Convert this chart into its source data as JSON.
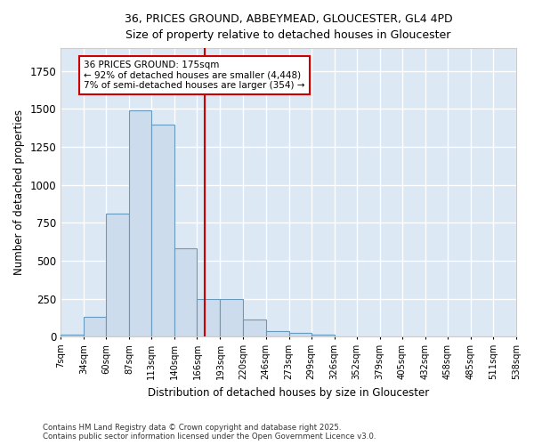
{
  "title_line1": "36, PRICES GROUND, ABBEYMEAD, GLOUCESTER, GL4 4PD",
  "title_line2": "Size of property relative to detached houses in Gloucester",
  "xlabel": "Distribution of detached houses by size in Gloucester",
  "ylabel": "Number of detached properties",
  "bar_edges": [
    7,
    34,
    60,
    87,
    113,
    140,
    166,
    193,
    220,
    246,
    273,
    299,
    326,
    352,
    379,
    405,
    432,
    458,
    485,
    511,
    538
  ],
  "bar_heights": [
    10,
    130,
    810,
    1490,
    1395,
    580,
    250,
    250,
    110,
    35,
    25,
    15,
    0,
    0,
    0,
    0,
    0,
    0,
    0,
    0
  ],
  "bar_color": "#ccdcec",
  "bar_edgecolor": "#6699bb",
  "vline_x": 175,
  "vline_color": "#cc0000",
  "annotation_text": "36 PRICES GROUND: 175sqm\n← 92% of detached houses are smaller (4,448)\n7% of semi-detached houses are larger (354) →",
  "annotation_box_facecolor": "#ffffff",
  "annotation_box_edgecolor": "#cc0000",
  "ylim": [
    0,
    1900
  ],
  "xlim": [
    7,
    538
  ],
  "fig_facecolor": "#ffffff",
  "plot_facecolor": "#dce8f4",
  "grid_color": "#ffffff",
  "footnote": "Contains HM Land Registry data © Crown copyright and database right 2025.\nContains public sector information licensed under the Open Government Licence v3.0.",
  "tick_labels": [
    "7sqm",
    "34sqm",
    "60sqm",
    "87sqm",
    "113sqm",
    "140sqm",
    "166sqm",
    "193sqm",
    "220sqm",
    "246sqm",
    "273sqm",
    "299sqm",
    "326sqm",
    "352sqm",
    "379sqm",
    "405sqm",
    "432sqm",
    "458sqm",
    "485sqm",
    "511sqm",
    "538sqm"
  ]
}
